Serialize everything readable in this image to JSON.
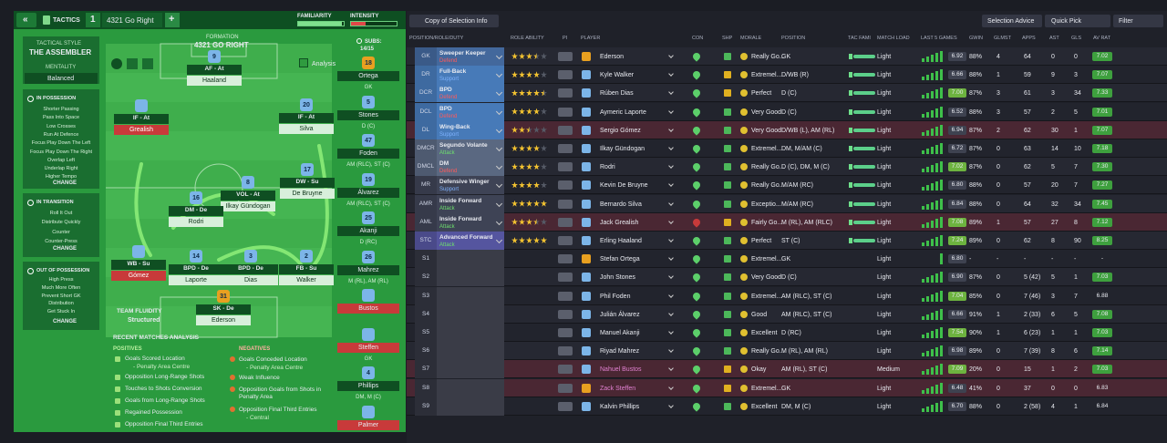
{
  "topbar": {
    "back": "«",
    "label": "TACTICS",
    "slot": "1",
    "tactic": "4321 Go Right",
    "add": "+",
    "familiarity": "FAMILIARITY",
    "intensity": "INTENSITY"
  },
  "style": {
    "heading": "TACTICAL STYLE",
    "name": "THE ASSEMBLER",
    "mentality_label": "MENTALITY",
    "mentality": "Balanced",
    "groups": [
      {
        "title": "IN POSSESSION",
        "items": [
          "Shorter Passing",
          "Pass Into Space",
          "Low Crosses",
          "Run At Defence",
          "Focus Play Down The Left",
          "Focus Play Down The Right",
          "Overlap Left",
          "Underlap Right",
          "Higher Tempo"
        ],
        "button": "CHANGE"
      },
      {
        "title": "IN TRANSITION",
        "items": [
          "Roll It Out",
          "Distribute Quickly",
          "Counter",
          "Counter-Press"
        ],
        "button": "CHANGE"
      },
      {
        "title": "OUT OF POSSESSION",
        "items": [
          "High Press",
          "Much More Often",
          "Prevent Short GK",
          "Distribution",
          "Get Stuck In"
        ],
        "button": "CHANGE"
      }
    ]
  },
  "pitch": {
    "heading": "FORMATION",
    "formation": "4321 GO RIGHT",
    "analysis": "Analysis",
    "fluidity_label": "TEAM FLUIDITY",
    "fluidity": "Structured",
    "players": [
      {
        "number": "9",
        "role": "AF - At",
        "name": "Haaland"
      },
      {
        "role": "IF - At",
        "name": "Grealish"
      },
      {
        "number": "20",
        "role": "IF - At",
        "name": "Silva"
      },
      {
        "number": "8",
        "role": "VOL - At",
        "name": "Ilkay Gündogan"
      },
      {
        "number": "17",
        "role": "DW - Su",
        "name": "De Bruyne"
      },
      {
        "number": "16",
        "role": "DM - De",
        "name": "Rodri"
      },
      {
        "role": "WB - Su",
        "name": "Gómez"
      },
      {
        "number": "14",
        "role": "BPD - De",
        "name": "Laporte"
      },
      {
        "number": "3",
        "role": "BPD - De",
        "name": "Dias"
      },
      {
        "number": "2",
        "role": "FB - Su",
        "name": "Walker"
      },
      {
        "number": "31",
        "role": "SK - De",
        "name": "Ederson"
      }
    ]
  },
  "subs": {
    "label": "SUBS:",
    "count": "14/15",
    "players": [
      {
        "number": "18",
        "name": "Ortega",
        "position": "GK"
      },
      {
        "number": "5",
        "name": "Stones",
        "position": "D (C)"
      },
      {
        "number": "47",
        "name": "Foden",
        "position": "AM (RLC), ST (C)"
      },
      {
        "number": "19",
        "name": "Álvarez",
        "position": "AM (RLC), ST (C)"
      },
      {
        "number": "25",
        "name": "Akanji",
        "position": "D (RC)"
      },
      {
        "number": "26",
        "name": "Mahrez",
        "position": "M (RL), AM (RL)"
      },
      {
        "name": "Bustos",
        "unavailable": true
      },
      {
        "name": "Steffen",
        "position": "GK",
        "unavailable": true
      },
      {
        "number": "4",
        "name": "Phillips",
        "position": "DM, M (C)"
      },
      {
        "name": "Palmer",
        "unavailable": true
      }
    ]
  },
  "analysis": {
    "title": "RECENT MATCHES ANALYSIS",
    "positives_title": "POSITIVES",
    "positives": [
      "Goals Scored Location",
      "- Penalty Area Centre",
      "Opposition Long-Range Shots",
      "Touches to Shots Conversion",
      "Goals from Long-Range Shots",
      "Regained Possession",
      "Opposition Final Third Entries"
    ],
    "negatives_title": "NEGATIVES",
    "negatives": [
      "Goals Conceded Location",
      "- Penalty Area Centre",
      "Weak Influence",
      "Opposition Goals from Shots in Penalty Area",
      "Opposition Final Third Entries",
      "- Central"
    ]
  },
  "toolbar": {
    "view": "Copy of Selection Info",
    "advice": "Selection Advice",
    "quick_pick": "Quick Pick",
    "filter": "Filter"
  },
  "table": {
    "columns": [
      "POSITION/ROLE/DUTY",
      "ROLE ABILITY",
      "PI",
      "PLAYER",
      "CON",
      "SHP",
      "MORALE",
      "POSITION",
      "TAC FAMI",
      "MATCH LOAD",
      "LAST 5 GAMES",
      "GWIN",
      "GLMST",
      "APPS",
      "AST",
      "GLS",
      "AV RAT"
    ],
    "rows": [
      {
        "slot": "GK",
        "role": "Sweeper Keeper",
        "duty": "Defend",
        "ability": 3.5,
        "player": "Ederson",
        "morale": "Really Go...",
        "position": "GK",
        "load": "Light",
        "form": "6.92",
        "gwin": "88%",
        "glmst": "4",
        "apps": "64",
        "ast": "0",
        "gls": "0",
        "avrat": "7.02"
      },
      {
        "slot": "DR",
        "role": "Full-Back",
        "duty": "Support",
        "ability": 4,
        "player": "Kyle Walker",
        "morale": "Extremel...",
        "position": "D/WB (R)",
        "load": "Light",
        "form": "6.66",
        "gwin": "88%",
        "glmst": "1",
        "apps": "59",
        "ast": "9",
        "gls": "3",
        "avrat": "7.07"
      },
      {
        "slot": "DCR",
        "role": "BPD",
        "duty": "Defend",
        "ability": 4.5,
        "player": "Rúben Dias",
        "morale": "Perfect",
        "position": "D (C)",
        "load": "Light",
        "form": "7.00",
        "gwin": "87%",
        "glmst": "3",
        "apps": "61",
        "ast": "3",
        "gls": "34",
        "avrat": "7.33"
      },
      {
        "slot": "DCL",
        "role": "BPD",
        "duty": "Defend",
        "ability": 4,
        "player": "Aymeric Laporte",
        "morale": "Very Good",
        "position": "D (C)",
        "load": "Light",
        "form": "6.52",
        "gwin": "88%",
        "glmst": "3",
        "apps": "57",
        "ast": "2",
        "gls": "5",
        "avrat": "7.01"
      },
      {
        "slot": "DL",
        "role": "Wing-Back",
        "duty": "Support",
        "ability": 2.5,
        "player": "Sergio Gómez",
        "morale": "Very Good",
        "position": "D/WB (L), AM (RL)",
        "load": "Light",
        "form": "6.94",
        "gwin": "87%",
        "glmst": "2",
        "apps": "62",
        "ast": "30",
        "gls": "1",
        "avrat": "7.07",
        "highlight": true
      },
      {
        "slot": "DMCR",
        "role": "Segundo Volante",
        "duty": "Attack",
        "ability": 4,
        "player": "Ilkay Gündogan",
        "morale": "Extremel...",
        "position": "DM, M/AM (C)",
        "load": "Light",
        "form": "6.72",
        "gwin": "87%",
        "glmst": "0",
        "apps": "63",
        "ast": "14",
        "gls": "10",
        "avrat": "7.18"
      },
      {
        "slot": "DMCL",
        "role": "DM",
        "duty": "Defend",
        "ability": 4,
        "player": "Rodri",
        "morale": "Really Go...",
        "position": "D (C), DM, M (C)",
        "load": "Light",
        "form": "7.02",
        "gwin": "87%",
        "glmst": "0",
        "apps": "62",
        "ast": "5",
        "gls": "7",
        "avrat": "7.30"
      },
      {
        "slot": "MR",
        "role": "Defensive Winger",
        "duty": "Support",
        "ability": 4,
        "player": "Kevin De Bruyne",
        "morale": "Really Go...",
        "position": "M/AM (RC)",
        "load": "Light",
        "form": "6.80",
        "gwin": "88%",
        "glmst": "0",
        "apps": "57",
        "ast": "20",
        "gls": "7",
        "avrat": "7.27"
      },
      {
        "slot": "AMR",
        "role": "Inside Forward",
        "duty": "Attack",
        "ability": 5,
        "player": "Bernardo Silva",
        "morale": "Exceptio...",
        "position": "M/AM (RC)",
        "load": "Light",
        "form": "6.84",
        "gwin": "88%",
        "glmst": "0",
        "apps": "64",
        "ast": "32",
        "gls": "34",
        "avrat": "7.45"
      },
      {
        "slot": "AML",
        "role": "Inside Forward",
        "duty": "Attack",
        "ability": 3.5,
        "player": "Jack Grealish",
        "morale": "Fairly Go...",
        "position": "M (RL), AM (RLC)",
        "load": "Light",
        "form": "7.08",
        "gwin": "89%",
        "glmst": "1",
        "apps": "57",
        "ast": "27",
        "gls": "8",
        "avrat": "7.12",
        "highlight": true
      },
      {
        "slot": "STC",
        "role": "Advanced Forward",
        "duty": "Attack",
        "ability": 5,
        "player": "Erling Haaland",
        "morale": "Perfect",
        "position": "ST (C)",
        "load": "Light",
        "form": "7.24",
        "gwin": "89%",
        "glmst": "0",
        "apps": "62",
        "ast": "8",
        "gls": "90",
        "avrat": "8.25"
      },
      {
        "slot": "S1",
        "player": "Stefan Ortega",
        "morale": "Extremel...",
        "position": "GK",
        "load": "Light",
        "form": "6.80",
        "gwin": "-",
        "glmst": "-",
        "apps": "-",
        "ast": "-",
        "gls": "-",
        "avrat": "-"
      },
      {
        "slot": "S2",
        "player": "John Stones",
        "morale": "Very Good",
        "position": "D (C)",
        "load": "Light",
        "form": "6.90",
        "gwin": "87%",
        "glmst": "0",
        "apps": "5 (42)",
        "ast": "5",
        "gls": "1",
        "avrat": "7.03"
      },
      {
        "slot": "S3",
        "player": "Phil Foden",
        "morale": "Extremel...",
        "position": "AM (RLC), ST (C)",
        "load": "Light",
        "form": "7.04",
        "gwin": "85%",
        "glmst": "0",
        "apps": "7 (46)",
        "ast": "3",
        "gls": "7",
        "avrat": "6.88"
      },
      {
        "slot": "S4",
        "player": "Julián Álvarez",
        "morale": "Good",
        "position": "AM (RLC), ST (C)",
        "load": "Light",
        "form": "6.66",
        "gwin": "91%",
        "glmst": "1",
        "apps": "2 (33)",
        "ast": "6",
        "gls": "5",
        "avrat": "7.08"
      },
      {
        "slot": "S5",
        "player": "Manuel Akanji",
        "morale": "Excellent",
        "position": "D (RC)",
        "load": "Light",
        "form": "7.54",
        "gwin": "90%",
        "glmst": "1",
        "apps": "6 (23)",
        "ast": "1",
        "gls": "1",
        "avrat": "7.03"
      },
      {
        "slot": "S6",
        "player": "Riyad Mahrez",
        "morale": "Really Go...",
        "position": "M (RL), AM (RL)",
        "load": "Light",
        "form": "6.98",
        "gwin": "89%",
        "glmst": "0",
        "apps": "7 (39)",
        "ast": "8",
        "gls": "6",
        "avrat": "7.14"
      },
      {
        "slot": "S7",
        "player": "Nahuel Bustos",
        "morale": "Okay",
        "position": "AM (RL), ST (C)",
        "load": "Medium",
        "form": "7.09",
        "gwin": "20%",
        "glmst": "0",
        "apps": "15",
        "ast": "1",
        "gls": "2",
        "avrat": "7.03",
        "highlight": true
      },
      {
        "slot": "S8",
        "player": "Zack Steffen",
        "morale": "Extremel...",
        "position": "GK",
        "load": "Light",
        "form": "6.48",
        "gwin": "41%",
        "glmst": "0",
        "apps": "37",
        "ast": "0",
        "gls": "0",
        "avrat": "6.83",
        "highlight": true
      },
      {
        "slot": "S9",
        "player": "Kalvin Phillips",
        "morale": "Excellent",
        "position": "DM, M (C)",
        "load": "Light",
        "form": "6.70",
        "gwin": "88%",
        "glmst": "0",
        "apps": "2 (58)",
        "ast": "4",
        "gls": "1",
        "avrat": "6.84"
      }
    ]
  }
}
